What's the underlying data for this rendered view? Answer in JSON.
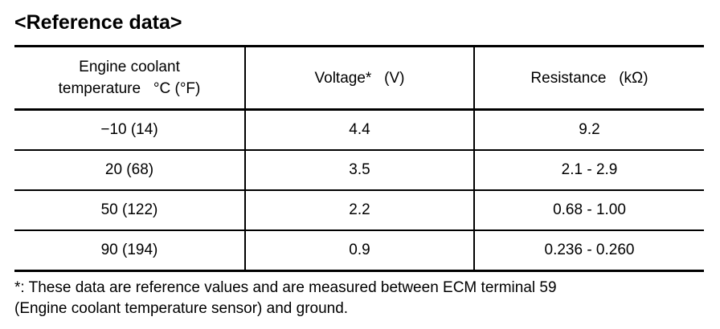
{
  "title": "<Reference data>",
  "table": {
    "header": [
      [
        "Engine coolant",
        "temperature   °C (°F)"
      ],
      [
        "Voltage*   (V)"
      ],
      [
        "Resistance   (kΩ)"
      ]
    ],
    "rows": [
      [
        "−10 (14)",
        "4.4",
        "9.2"
      ],
      [
        "20 (68)",
        "3.5",
        "2.1 - 2.9"
      ],
      [
        "50 (122)",
        "2.2",
        "0.68 - 1.00"
      ],
      [
        "90 (194)",
        "0.9",
        "0.236 - 0.260"
      ]
    ]
  },
  "footnote": [
    "*: These data are reference values and are measured between ECM terminal 59",
    "(Engine coolant temperature sensor) and ground."
  ]
}
